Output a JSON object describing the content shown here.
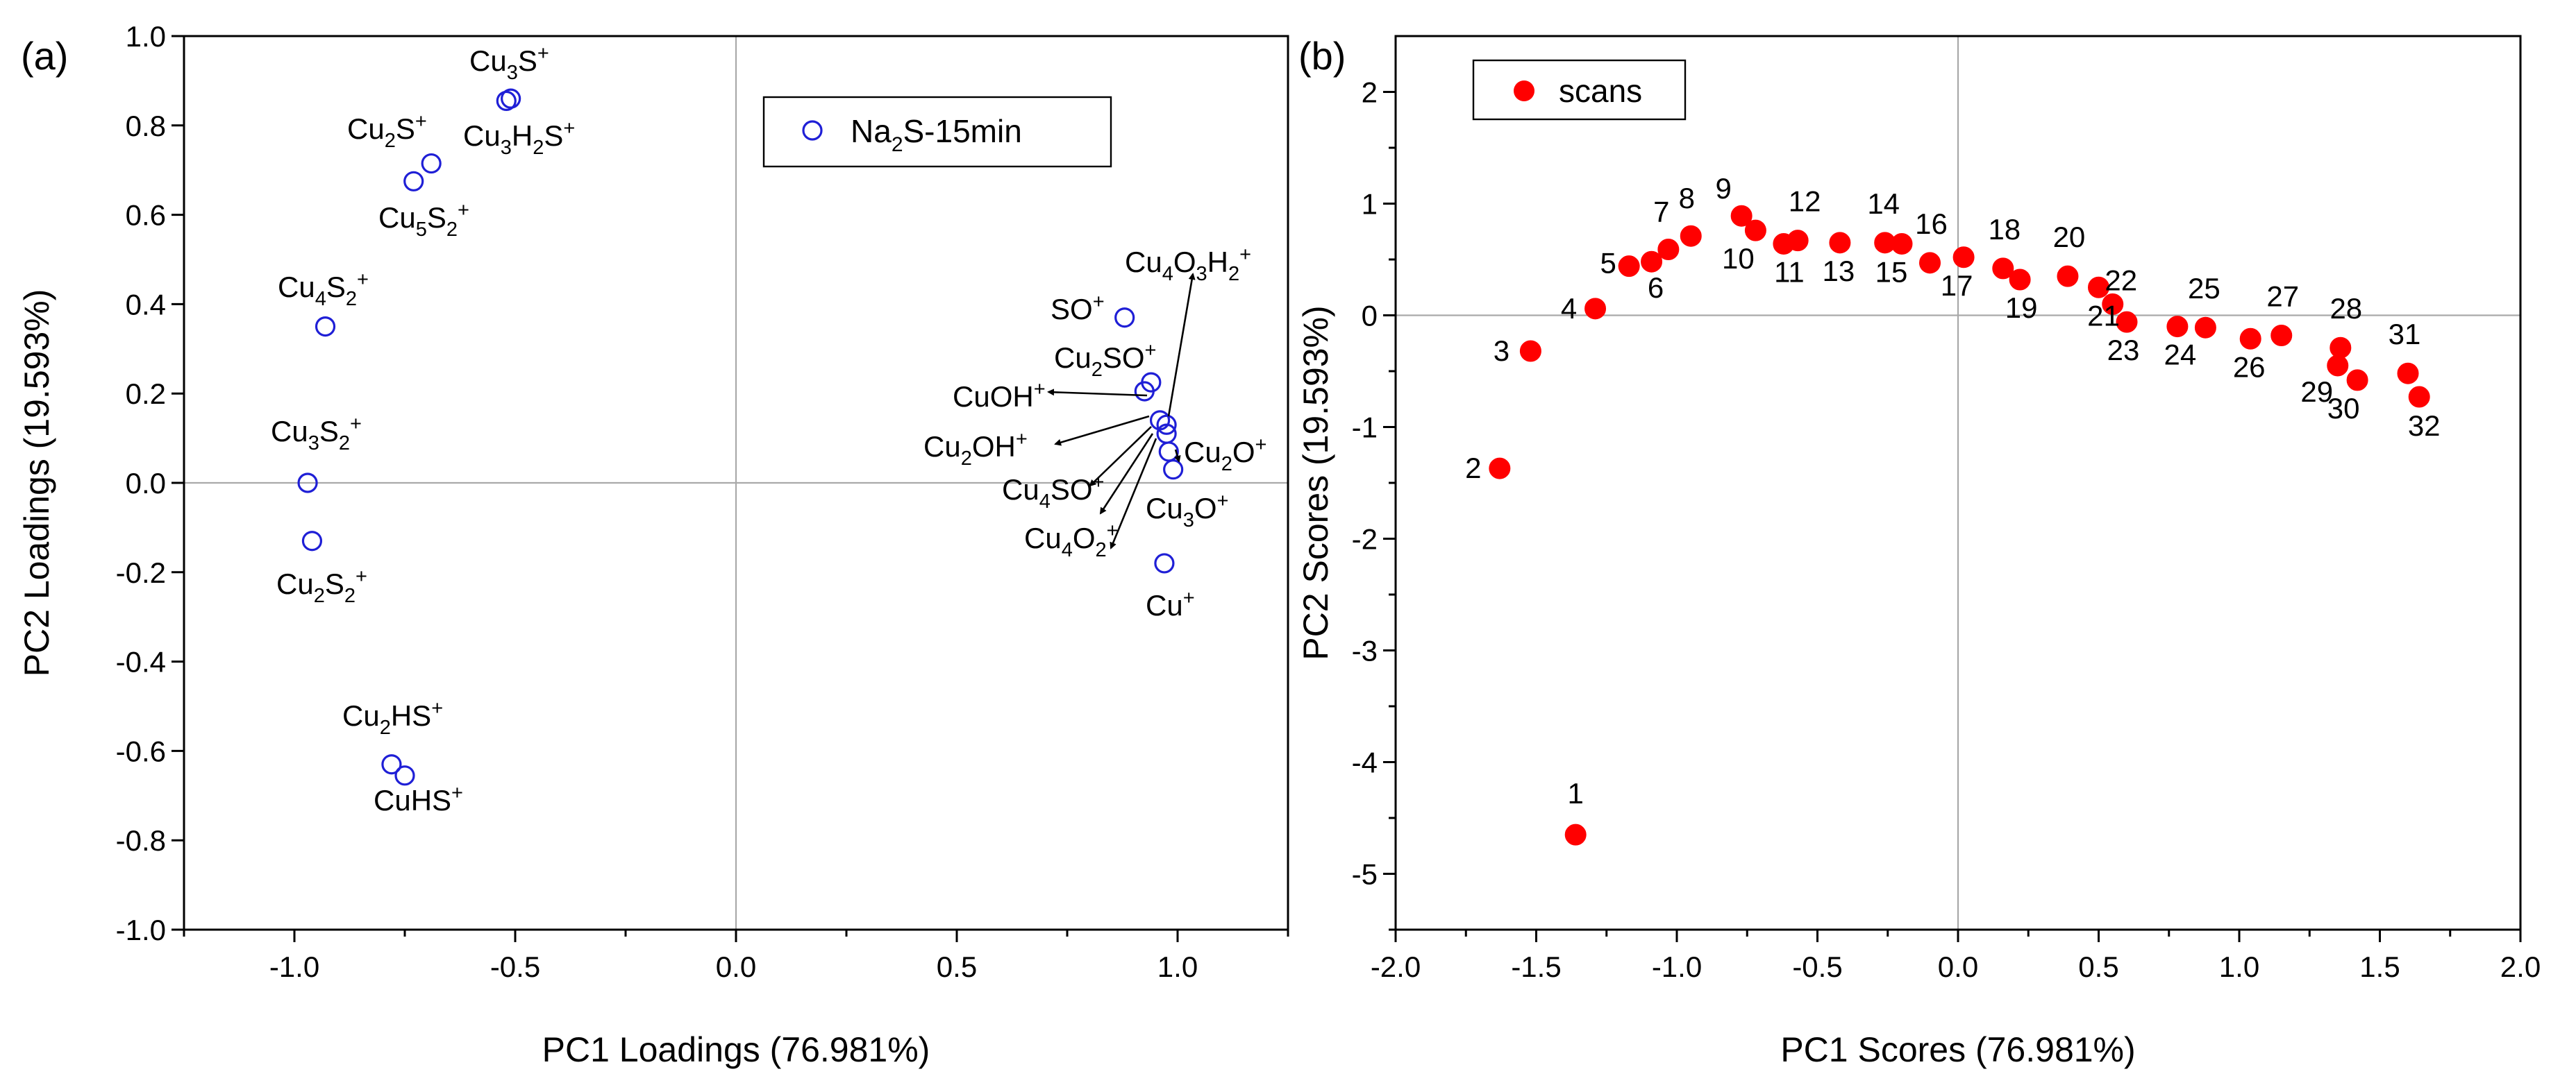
{
  "chart_data": [
    {
      "type": "scatter",
      "panel_label": "(a)",
      "xlabel": "PC1 Loadings (76.981%)",
      "ylabel": "PC2 Loadings (19.593%)",
      "xlim": [
        -1.25,
        1.25
      ],
      "ylim": [
        -1.0,
        1.0
      ],
      "xticks": [
        -1.0,
        -0.5,
        0.0,
        0.5,
        1.0
      ],
      "xtick_labels": [
        "-1.0",
        "-0.5",
        "0.0",
        "0.5",
        "1.0"
      ],
      "yticks": [
        -1.0,
        -0.8,
        -0.6,
        -0.4,
        -0.2,
        0.0,
        0.2,
        0.4,
        0.6,
        0.8,
        1.0
      ],
      "ytick_labels": [
        "-1.0",
        "-0.8",
        "-0.6",
        "-0.4",
        "-0.2",
        "0.0",
        "0.2",
        "0.4",
        "0.6",
        "0.8",
        "1.0"
      ],
      "marker": "open-circle",
      "color": "#1f1fd6",
      "legend": {
        "label": "Na2S-15min",
        "base": "Na",
        "sub": "2",
        "rest": "S-15min",
        "placement": "top-right"
      },
      "series": [
        {
          "name": "Na2S-15min",
          "points": [
            {
              "x": -0.52,
              "y": 0.855
            },
            {
              "x": -0.51,
              "y": 0.86
            },
            {
              "x": -0.69,
              "y": 0.715
            },
            {
              "x": -0.73,
              "y": 0.675
            },
            {
              "x": -0.93,
              "y": 0.35
            },
            {
              "x": -0.97,
              "y": 0.0
            },
            {
              "x": -0.96,
              "y": -0.13
            },
            {
              "x": -0.78,
              "y": -0.63
            },
            {
              "x": -0.75,
              "y": -0.655
            },
            {
              "x": 0.88,
              "y": 0.37
            },
            {
              "x": 0.94,
              "y": 0.225
            },
            {
              "x": 0.925,
              "y": 0.205
            },
            {
              "x": 0.96,
              "y": 0.14
            },
            {
              "x": 0.975,
              "y": 0.13
            },
            {
              "x": 0.975,
              "y": 0.11
            },
            {
              "x": 0.98,
              "y": 0.07
            },
            {
              "x": 0.99,
              "y": 0.03
            },
            {
              "x": 0.97,
              "y": -0.18
            }
          ]
        }
      ],
      "annotations": [
        {
          "id": "cu3s",
          "parts": [
            [
              "Cu",
              ""
            ],
            [
              "3",
              "sub"
            ],
            [
              "S",
              ""
            ],
            [
              "+",
              "sup"
            ]
          ]
        },
        {
          "id": "cu3h2s",
          "parts": [
            [
              "Cu",
              ""
            ],
            [
              "3",
              "sub"
            ],
            [
              "H",
              ""
            ],
            [
              "2",
              "sub"
            ],
            [
              "S",
              ""
            ],
            [
              "+",
              "sup"
            ]
          ]
        },
        {
          "id": "cu2s",
          "parts": [
            [
              "Cu",
              ""
            ],
            [
              "2",
              "sub"
            ],
            [
              "S",
              ""
            ],
            [
              "+",
              "sup"
            ]
          ]
        },
        {
          "id": "cu5s2",
          "parts": [
            [
              "Cu",
              ""
            ],
            [
              "5",
              "sub"
            ],
            [
              "S",
              ""
            ],
            [
              "2",
              "sub"
            ],
            [
              "+",
              "sup"
            ]
          ]
        },
        {
          "id": "cu4s2",
          "parts": [
            [
              "Cu",
              ""
            ],
            [
              "4",
              "sub"
            ],
            [
              "S",
              ""
            ],
            [
              "2",
              "sub"
            ],
            [
              "+",
              "sup"
            ]
          ]
        },
        {
          "id": "cu3s2",
          "parts": [
            [
              "Cu",
              ""
            ],
            [
              "3",
              "sub"
            ],
            [
              "S",
              ""
            ],
            [
              "2",
              "sub"
            ],
            [
              "+",
              "sup"
            ]
          ]
        },
        {
          "id": "cu2s2",
          "parts": [
            [
              "Cu",
              ""
            ],
            [
              "2",
              "sub"
            ],
            [
              "S",
              ""
            ],
            [
              "2",
              "sub"
            ],
            [
              "+",
              "sup"
            ]
          ]
        },
        {
          "id": "cu2hs",
          "parts": [
            [
              "Cu",
              ""
            ],
            [
              "2",
              "sub"
            ],
            [
              "HS",
              ""
            ],
            [
              "+",
              "sup"
            ]
          ]
        },
        {
          "id": "cuhs",
          "parts": [
            [
              "CuHS",
              ""
            ],
            [
              "+",
              "sup"
            ]
          ]
        },
        {
          "id": "cu4o3h2",
          "parts": [
            [
              "Cu",
              ""
            ],
            [
              "4",
              "sub"
            ],
            [
              "O",
              ""
            ],
            [
              "3",
              "sub"
            ],
            [
              "H",
              ""
            ],
            [
              "2",
              "sub"
            ],
            [
              "+",
              "sup"
            ]
          ]
        },
        {
          "id": "so",
          "parts": [
            [
              "SO",
              ""
            ],
            [
              "+",
              "sup"
            ]
          ]
        },
        {
          "id": "cu2so",
          "parts": [
            [
              "Cu",
              ""
            ],
            [
              "2",
              "sub"
            ],
            [
              "SO",
              ""
            ],
            [
              "+",
              "sup"
            ]
          ]
        },
        {
          "id": "cuoh",
          "parts": [
            [
              "CuOH",
              ""
            ],
            [
              "+",
              "sup"
            ]
          ]
        },
        {
          "id": "cu2oh",
          "parts": [
            [
              "Cu",
              ""
            ],
            [
              "2",
              "sub"
            ],
            [
              "OH",
              ""
            ],
            [
              "+",
              "sup"
            ]
          ]
        },
        {
          "id": "cu2o",
          "parts": [
            [
              "Cu",
              ""
            ],
            [
              "2",
              "sub"
            ],
            [
              "O",
              ""
            ],
            [
              "+",
              "sup"
            ]
          ]
        },
        {
          "id": "cu4so",
          "parts": [
            [
              "Cu",
              ""
            ],
            [
              "4",
              "sub"
            ],
            [
              "SO",
              ""
            ],
            [
              "+",
              "sup"
            ]
          ]
        },
        {
          "id": "cu3o",
          "parts": [
            [
              "Cu",
              ""
            ],
            [
              "3",
              "sub"
            ],
            [
              "O",
              ""
            ],
            [
              "+",
              "sup"
            ]
          ]
        },
        {
          "id": "cu4o2",
          "parts": [
            [
              "Cu",
              ""
            ],
            [
              "4",
              "sub"
            ],
            [
              "O",
              ""
            ],
            [
              "2",
              "sub"
            ],
            [
              "+",
              "sup"
            ]
          ]
        },
        {
          "id": "cu",
          "parts": [
            [
              "Cu",
              ""
            ],
            [
              "+",
              "sup"
            ]
          ]
        }
      ]
    },
    {
      "type": "scatter",
      "panel_label": "(b)",
      "xlabel": "PC1 Scores (76.981%)",
      "ylabel": "PC2 Scores (19.593%)",
      "xlim": [
        -2.0,
        2.0
      ],
      "ylim": [
        -5.5,
        2.5
      ],
      "xticks": [
        -2.0,
        -1.5,
        -1.0,
        -0.5,
        0.0,
        0.5,
        1.0,
        1.5,
        2.0
      ],
      "xtick_labels": [
        "-2.0",
        "-1.5",
        "-1.0",
        "-0.5",
        "0.0",
        "0.5",
        "1.0",
        "1.5",
        "2.0"
      ],
      "yticks": [
        -5,
        -4,
        -3,
        -2,
        -1,
        0,
        1,
        2
      ],
      "ytick_labels": [
        "-5",
        "-4",
        "-3",
        "-2",
        "-1",
        "0",
        "1",
        "2"
      ],
      "marker": "filled-circle",
      "color": "#ff0000",
      "legend": {
        "label": "scans",
        "placement": "top-left"
      },
      "series": [
        {
          "name": "scans",
          "points": [
            {
              "label": "1",
              "x": -1.36,
              "y": -4.65
            },
            {
              "label": "2",
              "x": -1.63,
              "y": -1.37
            },
            {
              "label": "3",
              "x": -1.52,
              "y": -0.32
            },
            {
              "label": "4",
              "x": -1.29,
              "y": 0.06
            },
            {
              "label": "5",
              "x": -1.17,
              "y": 0.44
            },
            {
              "label": "6",
              "x": -1.09,
              "y": 0.48
            },
            {
              "label": "7",
              "x": -1.03,
              "y": 0.59
            },
            {
              "label": "8",
              "x": -0.95,
              "y": 0.71
            },
            {
              "label": "9",
              "x": -0.77,
              "y": 0.89
            },
            {
              "label": "10",
              "x": -0.72,
              "y": 0.76
            },
            {
              "label": "11",
              "x": -0.62,
              "y": 0.64
            },
            {
              "label": "12",
              "x": -0.57,
              "y": 0.67
            },
            {
              "label": "13",
              "x": -0.42,
              "y": 0.65
            },
            {
              "label": "14",
              "x": -0.26,
              "y": 0.65
            },
            {
              "label": "15",
              "x": -0.2,
              "y": 0.64
            },
            {
              "label": "16",
              "x": -0.1,
              "y": 0.47
            },
            {
              "label": "17",
              "x": 0.02,
              "y": 0.52
            },
            {
              "label": "18",
              "x": 0.16,
              "y": 0.42
            },
            {
              "label": "19",
              "x": 0.22,
              "y": 0.32
            },
            {
              "label": "20",
              "x": 0.39,
              "y": 0.35
            },
            {
              "label": "21",
              "x": 0.5,
              "y": 0.25
            },
            {
              "label": "22",
              "x": 0.55,
              "y": 0.1
            },
            {
              "label": "23",
              "x": 0.6,
              "y": -0.06
            },
            {
              "label": "24",
              "x": 0.78,
              "y": -0.1
            },
            {
              "label": "25",
              "x": 0.88,
              "y": -0.11
            },
            {
              "label": "26",
              "x": 1.04,
              "y": -0.21
            },
            {
              "label": "27",
              "x": 1.15,
              "y": -0.18
            },
            {
              "label": "28",
              "x": 1.36,
              "y": -0.29
            },
            {
              "label": "29",
              "x": 1.35,
              "y": -0.45
            },
            {
              "label": "30",
              "x": 1.42,
              "y": -0.58
            },
            {
              "label": "31",
              "x": 1.6,
              "y": -0.52
            },
            {
              "label": "32",
              "x": 1.64,
              "y": -0.73
            }
          ]
        }
      ]
    }
  ]
}
